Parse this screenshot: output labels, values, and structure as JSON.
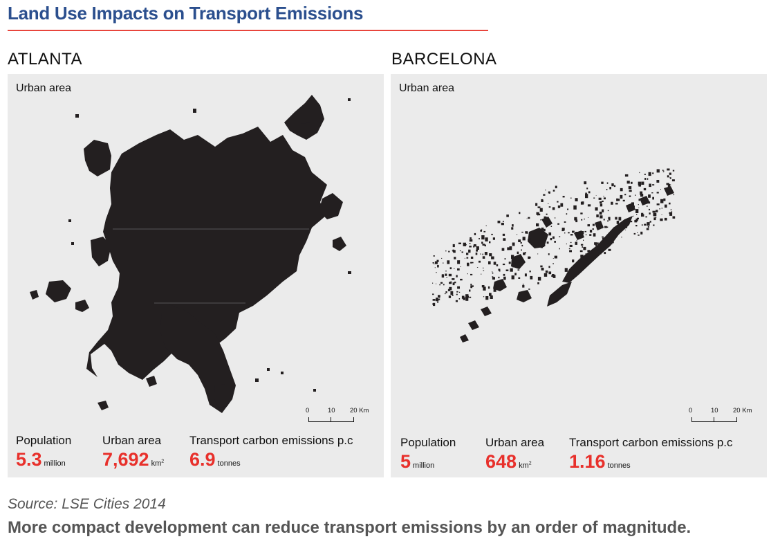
{
  "header": {
    "title": "Land Use Impacts on Transport Emissions",
    "accent_color": "#2b4f8e",
    "rule_color": "#e8453c"
  },
  "panels": [
    {
      "city": "ATLANTA",
      "map_label": "Urban area",
      "scale": {
        "ticks": [
          "0",
          "10",
          "20 Km"
        ]
      },
      "stats": {
        "population": {
          "label": "Population",
          "value": "5.3",
          "unit": "million"
        },
        "urban_area": {
          "label": "Urban area",
          "value": "7,692",
          "unit": "km"
        },
        "emissions": {
          "label": "Transport carbon emissions p.c",
          "value": "6.9",
          "unit": "tonnes"
        }
      }
    },
    {
      "city": "BARCELONA",
      "map_label": "Urban area",
      "scale": {
        "ticks": [
          "0",
          "10",
          "20 Km"
        ]
      },
      "stats": {
        "population": {
          "label": "Population",
          "value": "5",
          "unit": "million"
        },
        "urban_area": {
          "label": "Urban area",
          "value": "648",
          "unit": "km"
        },
        "emissions": {
          "label": "Transport carbon emissions p.c",
          "value": "1.16",
          "unit": "tonnes"
        }
      }
    }
  ],
  "footer": {
    "source": "Source: LSE Cities 2014",
    "conclusion": "More compact development can reduce transport emissions by an order of magnitude."
  },
  "colors": {
    "value_red": "#e8302b",
    "panel_bg": "#ebebeb",
    "urban_fill": "#231f20"
  }
}
